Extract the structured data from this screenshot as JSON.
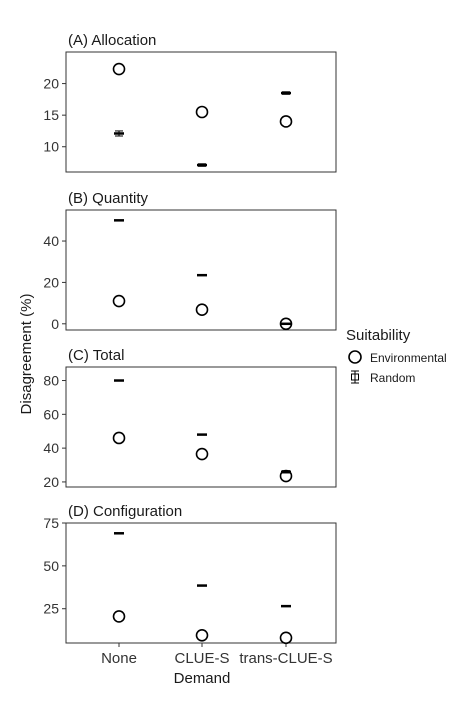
{
  "chart_data": {
    "type": "scatter",
    "ylabel": "Disagreement (%)",
    "xlabel": "Demand",
    "categories": [
      "None",
      "CLUE-S",
      "trans-CLUE-S"
    ],
    "legend": {
      "title": "Suitability",
      "placement": "right",
      "entries": [
        "Environmental",
        "Random"
      ]
    },
    "panels": [
      {
        "title": "(A) Allocation",
        "ylim": [
          6,
          25
        ],
        "yticks": [
          10,
          15,
          20
        ],
        "series": [
          {
            "name": "Environmental",
            "values": [
              22.3,
              15.5,
              14.0
            ]
          },
          {
            "name": "Random",
            "values": [
              12.1,
              7.1,
              18.5
            ],
            "err": [
              0.4,
              0.2,
              0.2
            ]
          }
        ]
      },
      {
        "title": "(B) Quantity",
        "ylim": [
          -3,
          55
        ],
        "yticks": [
          0,
          20,
          40
        ],
        "series": [
          {
            "name": "Environmental",
            "values": [
              11.0,
              6.8,
              0.0
            ]
          },
          {
            "name": "Random",
            "values": [
              50.0,
              23.5,
              0.0
            ]
          }
        ]
      },
      {
        "title": "(C) Total",
        "ylim": [
          17,
          88
        ],
        "yticks": [
          20,
          40,
          60,
          80
        ],
        "series": [
          {
            "name": "Environmental",
            "values": [
              46.0,
              36.5,
              23.5
            ]
          },
          {
            "name": "Random",
            "values": [
              80.0,
              48.0,
              26.0
            ],
            "err": [
              0,
              0,
              0.7
            ]
          }
        ]
      },
      {
        "title": "(D) Configuration",
        "ylim": [
          5,
          75
        ],
        "yticks": [
          25,
          50,
          75
        ],
        "series": [
          {
            "name": "Environmental",
            "values": [
              20.5,
              9.5,
              8.0
            ]
          },
          {
            "name": "Random",
            "values": [
              69.0,
              38.5,
              26.5
            ]
          }
        ]
      }
    ]
  }
}
